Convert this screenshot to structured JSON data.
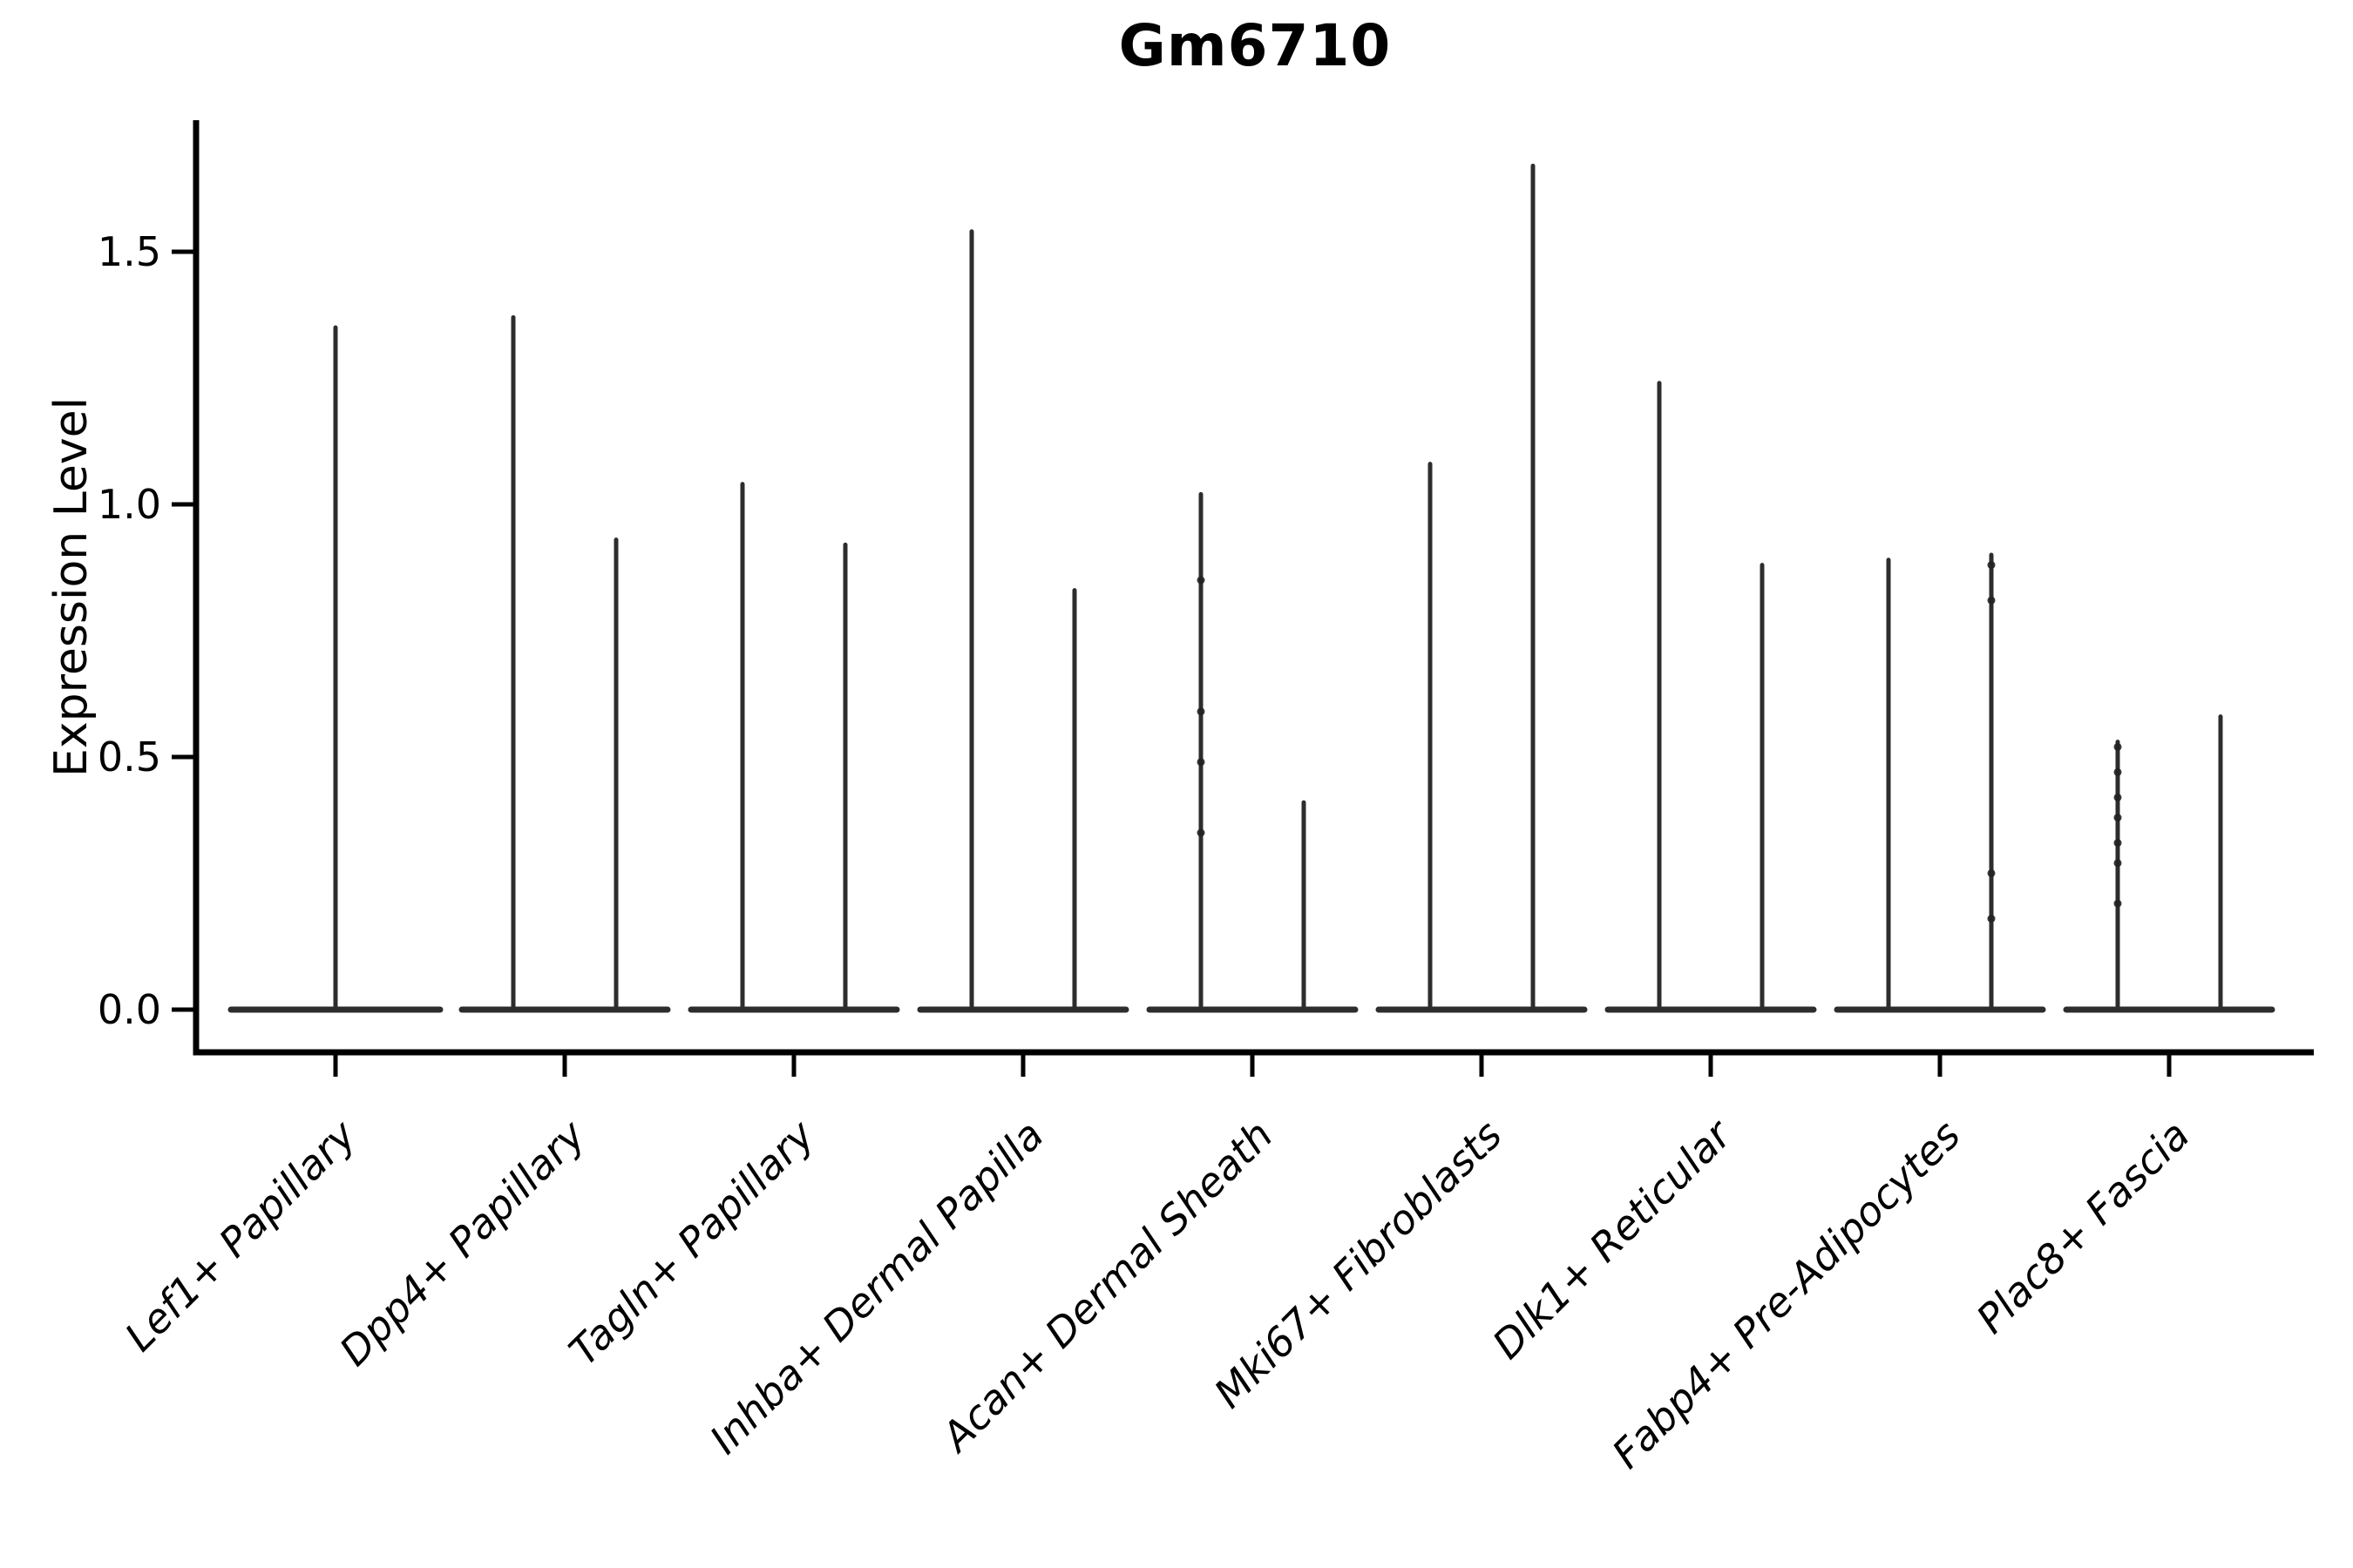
{
  "chart_data": {
    "type": "violin",
    "title": "Gm6710",
    "ylabel": "Expression Level",
    "xlabel": "",
    "yticks": [
      0.0,
      0.5,
      1.0,
      1.5
    ],
    "ylim": [
      -0.08,
      1.76
    ],
    "grid": false,
    "legend": "none",
    "violin_color": "#2d2d2d",
    "axis_color": "#000000",
    "categories": [
      "Lef1+ Papillary",
      "Dpp4+ Papillary",
      "Tagln+ Papillary",
      "Inhba+ Dermal Papilla",
      "Acan+ Dermal Sheath",
      "Mki67+ Fibroblasts",
      "Dlk1+ Reticular",
      "Fabp4+ Pre-Adipocytes",
      "Plac8+ Fascia"
    ],
    "violins": [
      {
        "category": "Lef1+ Papillary",
        "groups": [
          {
            "position": "center",
            "width": "full",
            "max": 1.35,
            "points": []
          }
        ]
      },
      {
        "category": "Dpp4+ Papillary",
        "groups": [
          {
            "position": "left",
            "width": "half",
            "max": 1.37,
            "points": []
          },
          {
            "position": "right",
            "width": "half",
            "max": 0.93,
            "points": []
          }
        ]
      },
      {
        "category": "Tagln+ Papillary",
        "groups": [
          {
            "position": "left",
            "width": "half",
            "max": 1.04,
            "points": []
          },
          {
            "position": "right",
            "width": "half",
            "max": 0.92,
            "points": []
          }
        ]
      },
      {
        "category": "Inhba+ Dermal Papilla",
        "groups": [
          {
            "position": "left",
            "width": "half",
            "max": 1.54,
            "points": []
          },
          {
            "position": "right",
            "width": "half",
            "max": 0.83,
            "points": []
          }
        ]
      },
      {
        "category": "Acan+ Dermal Sheath",
        "groups": [
          {
            "position": "left",
            "width": "half",
            "max": 1.02,
            "points": [
              0.85,
              0.59,
              0.49,
              0.35
            ]
          },
          {
            "position": "right",
            "width": "half",
            "max": 0.41,
            "points": []
          }
        ]
      },
      {
        "category": "Mki67+ Fibroblasts",
        "groups": [
          {
            "position": "left",
            "width": "half",
            "max": 1.08,
            "points": []
          },
          {
            "position": "right",
            "width": "half",
            "max": 1.67,
            "points": []
          }
        ]
      },
      {
        "category": "Dlk1+ Reticular",
        "groups": [
          {
            "position": "left",
            "width": "half",
            "max": 1.24,
            "points": []
          },
          {
            "position": "right",
            "width": "half",
            "max": 0.88,
            "points": []
          }
        ]
      },
      {
        "category": "Fabp4+ Pre-Adipocytes",
        "groups": [
          {
            "position": "left",
            "width": "half",
            "max": 0.89,
            "points": []
          },
          {
            "position": "right",
            "width": "half",
            "max": 0.9,
            "points": [
              0.88,
              0.81,
              0.27,
              0.18
            ]
          }
        ]
      },
      {
        "category": "Plac8+ Fascia",
        "groups": [
          {
            "position": "left",
            "width": "half",
            "max": 0.53,
            "points": [
              0.52,
              0.47,
              0.42,
              0.38,
              0.33,
              0.29,
              0.21
            ]
          },
          {
            "position": "right",
            "width": "half",
            "max": 0.58,
            "points": []
          }
        ]
      }
    ]
  }
}
